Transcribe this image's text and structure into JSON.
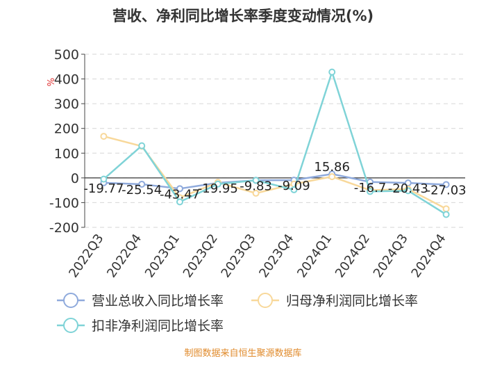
{
  "chart_data": {
    "type": "line",
    "title": "营收、净利同比增长率季度变动情况(%)",
    "ylabel": "%",
    "categories": [
      "2022Q3",
      "2022Q4",
      "2023Q1",
      "2023Q2",
      "2023Q3",
      "2023Q4",
      "2024Q1",
      "2024Q2",
      "2024Q3",
      "2024Q4"
    ],
    "ylim": [
      -200,
      500
    ],
    "yticks": [
      500,
      400,
      300,
      200,
      100,
      0,
      -100,
      -200
    ],
    "grid": true,
    "legend_position": "bottom",
    "series": [
      {
        "name": "营业总收入同比增长率",
        "color": "#8faadc",
        "values": [
          -19.77,
          -25.54,
          -43.47,
          -19.95,
          -9.83,
          -9.09,
          15.86,
          -16.7,
          -20.43,
          -27.03
        ],
        "labels": [
          "-19.77",
          "-25.54",
          "-43.47",
          "-19.95",
          "-9.83",
          "-9.09",
          "15.86",
          "-16.7",
          "-20.43",
          "-27.03"
        ]
      },
      {
        "name": "归母净利润同比增长率",
        "color": "#f8d89a",
        "values": [
          168,
          128,
          -80,
          -18,
          -62,
          -25,
          5,
          -50,
          -45,
          -125
        ]
      },
      {
        "name": "扣非净利润同比增长率",
        "color": "#7fd3d7",
        "values": [
          -5,
          130,
          -97,
          -25,
          -10,
          -48,
          428,
          -55,
          -52,
          -148
        ]
      }
    ]
  },
  "footer": {
    "source": "制图数据来自恒生聚源数据库"
  }
}
